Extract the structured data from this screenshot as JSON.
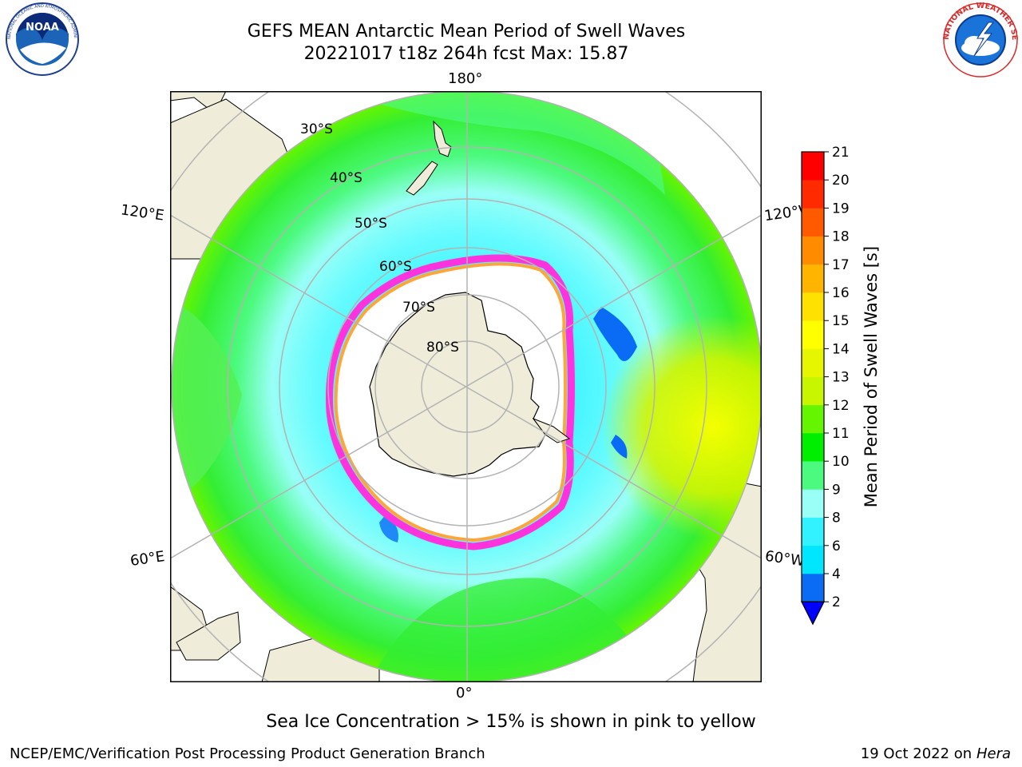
{
  "header": {
    "title_line1": "GEFS MEAN Antarctic Mean Period of Swell Waves",
    "title_line2": "20221017 t18z 264h fcst   Max: 15.87"
  },
  "logos": {
    "left": {
      "icon": "noaa-logo",
      "text": "NOAA",
      "ring_text": "NATIONAL OCEANIC AND ATMOSPHERIC ADMINISTRATION · U.S. DEPARTMENT OF COMMERCE"
    },
    "right": {
      "icon": "nws-logo",
      "ring_text": "NATIONAL WEATHER SERVICE"
    }
  },
  "map": {
    "projection": "south-polar-stereographic",
    "longitude_labels": {
      "top": "180°",
      "bottom": "0°",
      "upper_left": "120°E",
      "upper_right": "120°W",
      "lower_left": "60°E",
      "lower_right": "60°W"
    },
    "latitude_labels": [
      "30°S",
      "40°S",
      "50°S",
      "60°S",
      "70°S",
      "80°S"
    ],
    "colors": {
      "land": "#efedda",
      "ocean_blank": "#ffffff",
      "ice_pink": "#ff33dd",
      "ice_orange": "#ffa53a",
      "gridline": "#b3b3b3"
    }
  },
  "colorbar": {
    "label": "Mean Period of Swell Waves [s]",
    "ticks": [
      "2",
      "4",
      "6",
      "8",
      "9",
      "10",
      "11",
      "12",
      "13",
      "14",
      "15",
      "16",
      "17",
      "18",
      "19",
      "20",
      "21"
    ],
    "colors": [
      "#0a6cf5",
      "#00e6ff",
      "#33f2ff",
      "#99fff7",
      "#4dfa80",
      "#00ee00",
      "#66f500",
      "#c8f500",
      "#e6f500",
      "#ffff00",
      "#ffe100",
      "#ffb400",
      "#ff8c00",
      "#ff5a00",
      "#ff2a00",
      "#ff0000"
    ],
    "under_color": "#0000ff"
  },
  "caption": "Sea Ice Concentration > 15% is shown in pink to yellow",
  "footer": {
    "left": "NCEP/EMC/Verification Post Processing Product Generation Branch",
    "right_prefix": "19 Oct 2022 on ",
    "right_machine": "Hera"
  }
}
